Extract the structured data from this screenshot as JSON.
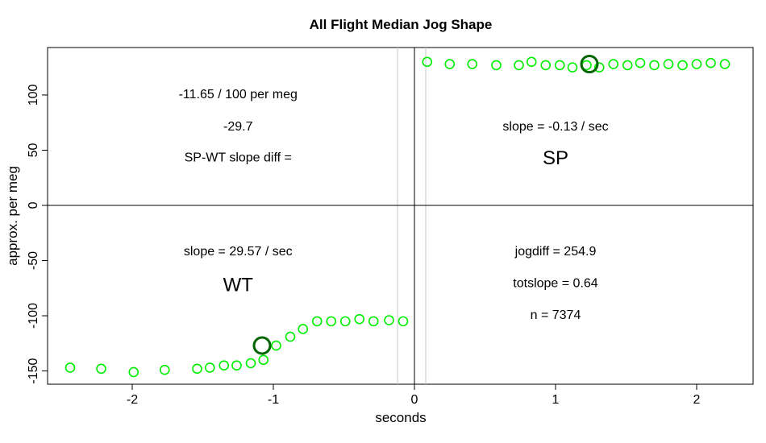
{
  "chart_data": {
    "type": "scatter",
    "title": "All Flight Median Jog Shape",
    "xlabel": "seconds",
    "ylabel": "approx. per meg",
    "xlim": [
      -2.6,
      2.4
    ],
    "ylim": [
      -162,
      143
    ],
    "x_ticks": [
      -2,
      -1,
      0,
      1,
      2
    ],
    "y_ticks": [
      -150,
      -100,
      -50,
      0,
      50,
      100
    ],
    "reference_lines": {
      "vertical_dark": 0,
      "vertical_gray": [
        -0.12,
        0.08
      ],
      "horizontal_dark": 0
    },
    "point_color": "#00ee00",
    "highlight_color": "#006400",
    "points": [
      {
        "x": -2.44,
        "y": -147
      },
      {
        "x": -2.22,
        "y": -148
      },
      {
        "x": -1.99,
        "y": -151
      },
      {
        "x": -1.77,
        "y": -149
      },
      {
        "x": -1.54,
        "y": -148
      },
      {
        "x": -1.45,
        "y": -147
      },
      {
        "x": -1.35,
        "y": -145
      },
      {
        "x": -1.26,
        "y": -145
      },
      {
        "x": -1.16,
        "y": -143
      },
      {
        "x": -1.07,
        "y": -140
      },
      {
        "x": -0.98,
        "y": -127
      },
      {
        "x": -0.88,
        "y": -119
      },
      {
        "x": -0.79,
        "y": -112
      },
      {
        "x": -0.69,
        "y": -105
      },
      {
        "x": -0.59,
        "y": -105
      },
      {
        "x": -0.49,
        "y": -105
      },
      {
        "x": -0.39,
        "y": -103
      },
      {
        "x": -0.29,
        "y": -105
      },
      {
        "x": -0.18,
        "y": -104
      },
      {
        "x": -0.08,
        "y": -105
      },
      {
        "x": 0.09,
        "y": 130
      },
      {
        "x": 0.25,
        "y": 128
      },
      {
        "x": 0.41,
        "y": 128
      },
      {
        "x": 0.58,
        "y": 127
      },
      {
        "x": 0.74,
        "y": 127
      },
      {
        "x": 0.83,
        "y": 130
      },
      {
        "x": 0.93,
        "y": 127
      },
      {
        "x": 1.03,
        "y": 127
      },
      {
        "x": 1.12,
        "y": 125
      },
      {
        "x": 1.22,
        "y": 127
      },
      {
        "x": 1.31,
        "y": 125
      },
      {
        "x": 1.41,
        "y": 128
      },
      {
        "x": 1.51,
        "y": 127
      },
      {
        "x": 1.6,
        "y": 129
      },
      {
        "x": 1.7,
        "y": 127
      },
      {
        "x": 1.8,
        "y": 128
      },
      {
        "x": 1.9,
        "y": 127
      },
      {
        "x": 2.0,
        "y": 128
      },
      {
        "x": 2.1,
        "y": 129
      },
      {
        "x": 2.2,
        "y": 128
      }
    ],
    "highlight_points": [
      {
        "x": -1.08,
        "y": -127
      },
      {
        "x": 1.24,
        "y": 128
      }
    ],
    "annotations": [
      {
        "text": "-11.65 / 100 per meg",
        "x": -1.25,
        "y": 100,
        "size": "normal"
      },
      {
        "text": "-29.7",
        "x": -1.25,
        "y": 71,
        "size": "normal"
      },
      {
        "text": "SP-WT slope diff =",
        "x": -1.25,
        "y": 43,
        "size": "normal"
      },
      {
        "text": "slope = -0.13 / sec",
        "x": 1.0,
        "y": 71,
        "size": "normal"
      },
      {
        "text": "SP",
        "x": 1.0,
        "y": 42,
        "size": "big"
      },
      {
        "text": "slope = 29.57 / sec",
        "x": -1.25,
        "y": -42,
        "size": "normal"
      },
      {
        "text": "WT",
        "x": -1.25,
        "y": -73,
        "size": "big"
      },
      {
        "text": "jogdiff = 254.9",
        "x": 1.0,
        "y": -42,
        "size": "normal"
      },
      {
        "text": "totslope = 0.64",
        "x": 1.0,
        "y": -71,
        "size": "normal"
      },
      {
        "text": "n = 7374",
        "x": 1.0,
        "y": -100,
        "size": "normal"
      }
    ]
  }
}
